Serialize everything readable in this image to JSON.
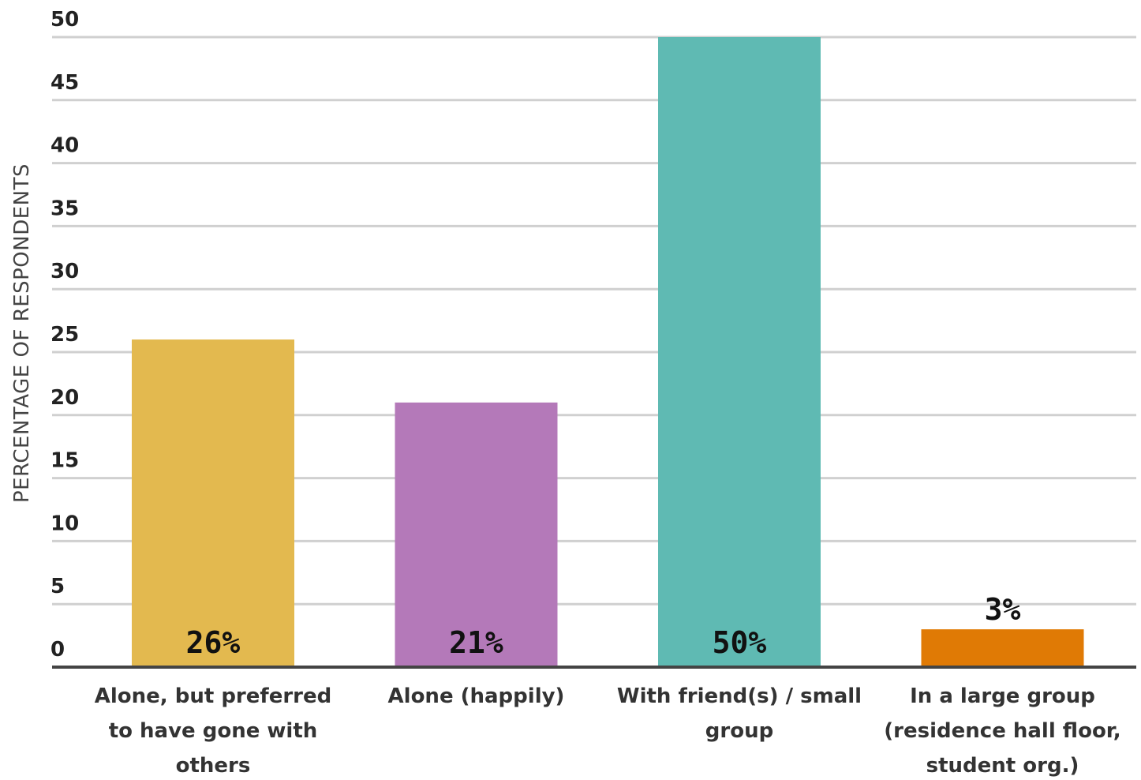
{
  "chart_data": {
    "type": "bar",
    "ylabel": "PERCENTAGE OF RESPONDENTS",
    "ylim": [
      0,
      50
    ],
    "yticks": [
      0,
      5,
      10,
      15,
      20,
      25,
      30,
      35,
      40,
      45,
      50
    ],
    "grid": true,
    "categories": [
      [
        "Alone, but preferred",
        "to have gone with",
        "others"
      ],
      [
        "Alone (happily)"
      ],
      [
        "With friend(s) / small",
        "group"
      ],
      [
        "In a large group",
        "(residence hall floor,",
        "student org.)"
      ]
    ],
    "values": [
      26,
      21,
      50,
      3
    ],
    "data_labels": [
      "26%",
      "21%",
      "50%",
      "3%"
    ],
    "colors": [
      "#E3B94F",
      "#B479B9",
      "#5FBAB3",
      "#E07A05"
    ]
  }
}
